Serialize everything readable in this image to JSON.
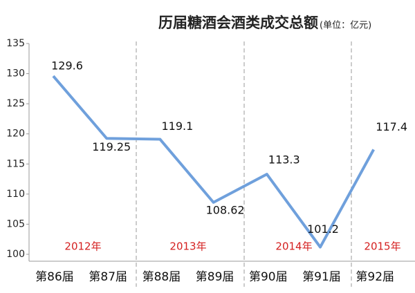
{
  "chart_data": {
    "type": "line",
    "title": "历届糖酒会酒类成交总额",
    "subtitle": "(单位：亿元)",
    "categories": [
      "第86届",
      "第87届",
      "第88届",
      "第89届",
      "第90届",
      "第91届",
      "第92届"
    ],
    "values": [
      129.6,
      119.25,
      119.1,
      108.62,
      113.3,
      101.2,
      117.4
    ],
    "color": "#6fa0dc",
    "ylim": [
      100,
      135
    ],
    "yticks": [
      100,
      105,
      110,
      115,
      120,
      125,
      130,
      135
    ],
    "annotations": [
      "2012年",
      "2013年",
      "2014年",
      "2015年"
    ]
  }
}
